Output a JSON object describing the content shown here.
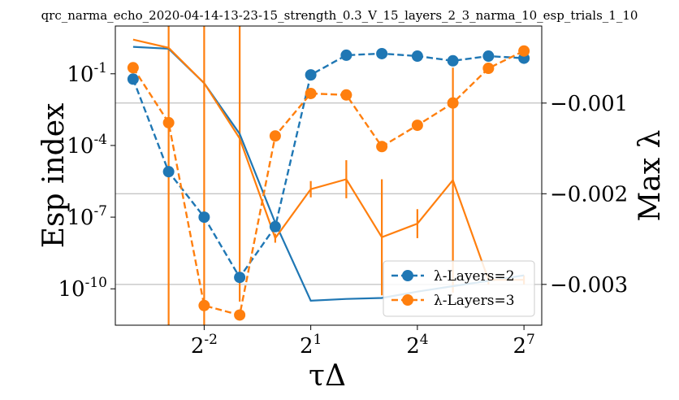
{
  "chart_data": {
    "type": "line",
    "title": "qrc_narma_echo_2020-04-14-13-23-15_strength_0.3_V_15_layers_2_3_narma_10_esp_trials_1_10",
    "xlabel": "τΔ",
    "ylabel_left": "Esp index",
    "ylabel_right": "Max λ",
    "x_scale": "log2",
    "x_tick_labels": [
      {
        "base": "2",
        "exp": "-2",
        "x": 0.25
      },
      {
        "base": "2",
        "exp": "1",
        "x": 2
      },
      {
        "base": "2",
        "exp": "4",
        "x": 16
      },
      {
        "base": "2",
        "exp": "7",
        "x": 128
      }
    ],
    "y_left_scale": "log10",
    "y_left_range": [
      3e-12,
      10
    ],
    "y_left_tick_labels": [
      {
        "base": "10",
        "exp": "-1",
        "y": 0.1
      },
      {
        "base": "10",
        "exp": "-4",
        "y": 0.0001
      },
      {
        "base": "10",
        "exp": "-7",
        "y": 1e-07
      },
      {
        "base": "10",
        "exp": "-10",
        "y": 1e-10
      }
    ],
    "y_right_range": [
      -0.00345,
      -0.00015
    ],
    "y_right_tick_labels": [
      {
        "label": "−0.001",
        "y": -0.001
      },
      {
        "label": "−0.002",
        "y": -0.002
      },
      {
        "label": "−0.003",
        "y": -0.003
      }
    ],
    "grid": "right axis horizontal lines",
    "legend": {
      "placement": "lower-right",
      "entries": [
        "λ-Layers=2",
        "λ-Layers=3"
      ]
    },
    "colors": {
      "layers2": "#1f77b4",
      "layers3": "#ff7f0e",
      "grid": "#b0b0b0"
    },
    "x": [
      0.0625,
      0.125,
      0.25,
      0.5,
      1,
      2,
      4,
      8,
      16,
      32,
      64,
      128
    ],
    "series": [
      {
        "name": "λ-Layers=2",
        "style": "dashed with circle markers",
        "axis": "left",
        "values": [
          0.06,
          8e-06,
          1e-07,
          3e-10,
          4e-08,
          0.09,
          0.6,
          0.7,
          0.55,
          0.35,
          0.55,
          0.45
        ]
      },
      {
        "name": "λ-Layers=3",
        "style": "dashed with circle markers",
        "axis": "left",
        "values": [
          0.18,
          0.0009,
          2e-11,
          8e-12,
          0.00025,
          0.015,
          0.013,
          9e-05,
          0.0007,
          0.006,
          0.17,
          0.9
        ]
      },
      {
        "name": "",
        "style": "solid line, right axis",
        "axis": "right",
        "values": [
          -0.00038,
          -0.0004,
          -0.00078,
          -0.00134,
          -0.00232,
          -0.00318,
          -0.00316,
          -0.00315,
          -0.00308,
          -0.00302,
          -0.00296,
          -0.0029
        ]
      },
      {
        "name": "",
        "style": "solid line with error bars, right axis",
        "axis": "right",
        "values": [
          -0.0003,
          -0.00039,
          -0.00078,
          -0.00139,
          -0.00249,
          -0.00195,
          -0.00184,
          -0.00248,
          -0.00233,
          -0.00185,
          -0.00295,
          -0.00295
        ],
        "errors": [
          0,
          0.00306,
          0.00267,
          0.0018,
          5e-05,
          9e-05,
          0.00021,
          0.00064,
          0.00016,
          0.00124,
          5e-05,
          5e-05
        ]
      }
    ]
  }
}
